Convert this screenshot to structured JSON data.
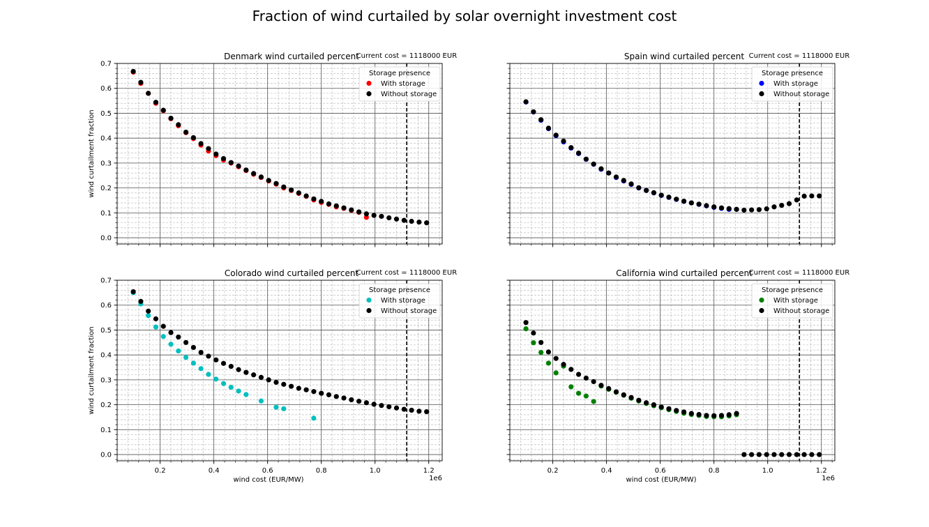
{
  "figure": {
    "suptitle": "Fraction of wind curtailed by solar overnight investment cost"
  },
  "chart_data": [
    {
      "type": "scatter",
      "title": "Denmark wind curtailed percent",
      "annotation": "Current cost = 1118000 EUR",
      "current_cost": 1118000,
      "xlabel": "",
      "ylabel": "wind curtailment fraction",
      "x_offset_label": "",
      "xlim": [
        40000,
        1250000
      ],
      "ylim": [
        -0.025,
        0.7
      ],
      "x_ticks": [
        200000,
        400000,
        600000,
        800000,
        1000000,
        1200000
      ],
      "x_tick_labels": [],
      "y_ticks": [
        0.0,
        0.1,
        0.2,
        0.3,
        0.4,
        0.5,
        0.6,
        0.7
      ],
      "y_tick_labels": [
        "0.0",
        "0.1",
        "0.2",
        "0.3",
        "0.4",
        "0.5",
        "0.6",
        "0.7"
      ],
      "grid": true,
      "legend_placement": "upper right",
      "legend_title": "Storage presence",
      "series": [
        {
          "name": "With storage",
          "color": "#ff0000",
          "x": [
            100000,
            128000,
            156000,
            184000,
            212000,
            240000,
            268000,
            296000,
            324000,
            352000,
            380000,
            408000,
            436000,
            464000,
            492000,
            520000,
            548000,
            576000,
            604000,
            632000,
            660000,
            688000,
            716000,
            744000,
            772000,
            800000,
            828000,
            856000,
            884000,
            912000,
            940000,
            968000
          ],
          "y": [
            0.665,
            0.62,
            0.58,
            0.54,
            0.51,
            0.478,
            0.45,
            0.422,
            0.398,
            0.372,
            0.348,
            0.33,
            0.312,
            0.3,
            0.285,
            0.27,
            0.255,
            0.242,
            0.228,
            0.215,
            0.2,
            0.19,
            0.178,
            0.166,
            0.152,
            0.142,
            0.134,
            0.124,
            0.118,
            0.11,
            0.102,
            0.082
          ]
        },
        {
          "name": "Without storage",
          "color": "#000000",
          "x": [
            100000,
            128000,
            156000,
            184000,
            212000,
            240000,
            268000,
            296000,
            324000,
            352000,
            380000,
            408000,
            436000,
            464000,
            492000,
            520000,
            548000,
            576000,
            604000,
            632000,
            660000,
            688000,
            716000,
            744000,
            772000,
            800000,
            828000,
            856000,
            884000,
            912000,
            940000,
            968000,
            996000,
            1024000,
            1052000,
            1080000,
            1108000,
            1136000,
            1164000,
            1192000
          ],
          "y": [
            0.668,
            0.624,
            0.58,
            0.544,
            0.512,
            0.48,
            0.454,
            0.424,
            0.402,
            0.378,
            0.358,
            0.336,
            0.318,
            0.302,
            0.288,
            0.272,
            0.258,
            0.244,
            0.23,
            0.218,
            0.204,
            0.192,
            0.18,
            0.168,
            0.156,
            0.146,
            0.136,
            0.128,
            0.12,
            0.112,
            0.104,
            0.096,
            0.09,
            0.086,
            0.08,
            0.075,
            0.07,
            0.066,
            0.063,
            0.06
          ]
        }
      ]
    },
    {
      "type": "scatter",
      "title": "Spain wind curtailed percent",
      "annotation": "Current cost = 1118000 EUR",
      "current_cost": 1118000,
      "xlabel": "",
      "ylabel": "",
      "x_offset_label": "",
      "xlim": [
        40000,
        1250000
      ],
      "ylim": [
        -0.025,
        0.7
      ],
      "x_ticks": [
        200000,
        400000,
        600000,
        800000,
        1000000,
        1200000
      ],
      "x_tick_labels": [],
      "y_ticks": [
        0.0,
        0.1,
        0.2,
        0.3,
        0.4,
        0.5,
        0.6,
        0.7
      ],
      "y_tick_labels": [],
      "grid": true,
      "legend_placement": "upper right",
      "legend_title": "Storage presence",
      "series": [
        {
          "name": "With storage",
          "color": "#0000ff",
          "x": [
            100000,
            128000,
            156000,
            184000,
            212000,
            240000,
            268000,
            296000,
            324000,
            352000,
            380000,
            408000,
            436000,
            464000,
            492000,
            520000,
            548000,
            576000,
            604000,
            632000,
            660000,
            688000,
            716000,
            744000,
            772000,
            800000,
            828000,
            856000,
            884000
          ],
          "y": [
            0.545,
            0.505,
            0.472,
            0.438,
            0.41,
            0.385,
            0.36,
            0.338,
            0.315,
            0.295,
            0.275,
            0.26,
            0.242,
            0.228,
            0.214,
            0.2,
            0.19,
            0.18,
            0.17,
            0.162,
            0.154,
            0.146,
            0.14,
            0.134,
            0.128,
            0.122,
            0.118,
            0.114,
            0.114
          ]
        },
        {
          "name": "Without storage",
          "color": "#000000",
          "x": [
            100000,
            128000,
            156000,
            184000,
            212000,
            240000,
            268000,
            296000,
            324000,
            352000,
            380000,
            408000,
            436000,
            464000,
            492000,
            520000,
            548000,
            576000,
            604000,
            632000,
            660000,
            688000,
            716000,
            744000,
            772000,
            800000,
            828000,
            856000,
            884000,
            912000,
            940000,
            968000,
            996000,
            1024000,
            1052000,
            1080000,
            1108000,
            1136000,
            1164000,
            1192000
          ],
          "y": [
            0.546,
            0.506,
            0.474,
            0.44,
            0.412,
            0.388,
            0.362,
            0.34,
            0.316,
            0.296,
            0.277,
            0.26,
            0.244,
            0.23,
            0.216,
            0.201,
            0.19,
            0.181,
            0.171,
            0.163,
            0.155,
            0.147,
            0.14,
            0.135,
            0.129,
            0.124,
            0.12,
            0.117,
            0.114,
            0.111,
            0.112,
            0.113,
            0.116,
            0.124,
            0.13,
            0.137,
            0.152,
            0.167,
            0.168,
            0.168
          ]
        }
      ]
    },
    {
      "type": "scatter",
      "title": "Colorado wind curtailed percent",
      "annotation": "Current cost = 1118000 EUR",
      "current_cost": 1118000,
      "xlabel": "wind cost (EUR/MW)",
      "ylabel": "wind curtailment fraction",
      "x_offset_label": "1e6",
      "xlim": [
        40000,
        1250000
      ],
      "ylim": [
        -0.025,
        0.7
      ],
      "x_ticks": [
        200000,
        400000,
        600000,
        800000,
        1000000,
        1200000
      ],
      "x_tick_labels": [
        "0.2",
        "0.4",
        "0.6",
        "0.8",
        "1.0",
        "1.2"
      ],
      "y_ticks": [
        0.0,
        0.1,
        0.2,
        0.3,
        0.4,
        0.5,
        0.6,
        0.7
      ],
      "y_tick_labels": [
        "0.0",
        "0.1",
        "0.2",
        "0.3",
        "0.4",
        "0.5",
        "0.6",
        "0.7"
      ],
      "grid": true,
      "legend_placement": "upper right",
      "legend_title": "Storage presence",
      "series": [
        {
          "name": "With storage",
          "color": "#00bfbf",
          "x": [
            100000,
            128000,
            156000,
            184000,
            212000,
            240000,
            268000,
            296000,
            324000,
            352000,
            380000,
            408000,
            436000,
            464000,
            492000,
            520000,
            576000,
            632000,
            660000,
            772000
          ],
          "y": [
            0.65,
            0.605,
            0.558,
            0.512,
            0.474,
            0.443,
            0.416,
            0.39,
            0.367,
            0.345,
            0.322,
            0.303,
            0.285,
            0.27,
            0.255,
            0.241,
            0.215,
            0.19,
            0.184,
            0.146
          ]
        },
        {
          "name": "Without storage",
          "color": "#000000",
          "x": [
            100000,
            128000,
            156000,
            184000,
            212000,
            240000,
            268000,
            296000,
            324000,
            352000,
            380000,
            408000,
            436000,
            464000,
            492000,
            520000,
            548000,
            576000,
            604000,
            632000,
            660000,
            688000,
            716000,
            744000,
            772000,
            800000,
            828000,
            856000,
            884000,
            912000,
            940000,
            968000,
            996000,
            1024000,
            1052000,
            1080000,
            1108000,
            1136000,
            1164000,
            1192000
          ],
          "y": [
            0.654,
            0.615,
            0.576,
            0.545,
            0.515,
            0.49,
            0.472,
            0.45,
            0.43,
            0.41,
            0.395,
            0.38,
            0.366,
            0.354,
            0.341,
            0.33,
            0.32,
            0.31,
            0.3,
            0.29,
            0.282,
            0.274,
            0.266,
            0.26,
            0.253,
            0.246,
            0.24,
            0.233,
            0.227,
            0.22,
            0.214,
            0.208,
            0.202,
            0.197,
            0.192,
            0.187,
            0.182,
            0.178,
            0.174,
            0.172
          ]
        }
      ]
    },
    {
      "type": "scatter",
      "title": "California wind curtailed percent",
      "annotation": "Current cost = 1118000 EUR",
      "current_cost": 1118000,
      "xlabel": "wind cost (EUR/MW)",
      "ylabel": "",
      "x_offset_label": "1e6",
      "xlim": [
        40000,
        1250000
      ],
      "ylim": [
        -0.025,
        0.7
      ],
      "x_ticks": [
        200000,
        400000,
        600000,
        800000,
        1000000,
        1200000
      ],
      "x_tick_labels": [
        "0.2",
        "0.4",
        "0.6",
        "0.8",
        "1.0",
        "1.2"
      ],
      "y_ticks": [
        0.0,
        0.1,
        0.2,
        0.3,
        0.4,
        0.5,
        0.6,
        0.7
      ],
      "y_tick_labels": [],
      "grid": true,
      "legend_placement": "upper right",
      "legend_title": "Storage presence",
      "series": [
        {
          "name": "With storage",
          "color": "#008000",
          "x": [
            100000,
            128000,
            156000,
            184000,
            212000,
            240000,
            268000,
            296000,
            324000,
            352000,
            380000,
            408000,
            436000,
            464000,
            492000,
            520000,
            548000,
            576000,
            604000,
            632000,
            660000,
            688000,
            716000,
            744000,
            772000,
            800000,
            828000,
            856000,
            884000
          ],
          "y": [
            0.505,
            0.449,
            0.41,
            0.367,
            0.328,
            0.355,
            0.272,
            0.246,
            0.235,
            0.213,
            0.275,
            0.262,
            0.25,
            0.238,
            0.226,
            0.215,
            0.205,
            0.196,
            0.188,
            0.18,
            0.173,
            0.166,
            0.161,
            0.157,
            0.153,
            0.152,
            0.152,
            0.155,
            0.16
          ]
        },
        {
          "name": "Without storage",
          "color": "#000000",
          "x": [
            100000,
            128000,
            156000,
            184000,
            212000,
            240000,
            268000,
            296000,
            324000,
            352000,
            380000,
            408000,
            436000,
            464000,
            492000,
            520000,
            548000,
            576000,
            604000,
            632000,
            660000,
            688000,
            716000,
            744000,
            772000,
            800000,
            828000,
            856000,
            884000,
            912000,
            940000,
            968000,
            996000,
            1024000,
            1052000,
            1080000,
            1108000,
            1136000,
            1164000,
            1192000
          ],
          "y": [
            0.53,
            0.488,
            0.45,
            0.412,
            0.386,
            0.362,
            0.342,
            0.322,
            0.307,
            0.293,
            0.278,
            0.265,
            0.252,
            0.24,
            0.229,
            0.218,
            0.208,
            0.2,
            0.191,
            0.184,
            0.177,
            0.171,
            0.165,
            0.161,
            0.157,
            0.156,
            0.157,
            0.16,
            0.165,
            0.0,
            0.0,
            0.0,
            0.0,
            0.0,
            0.0,
            0.0,
            0.0,
            0.0,
            0.0,
            0.0
          ]
        }
      ]
    }
  ]
}
